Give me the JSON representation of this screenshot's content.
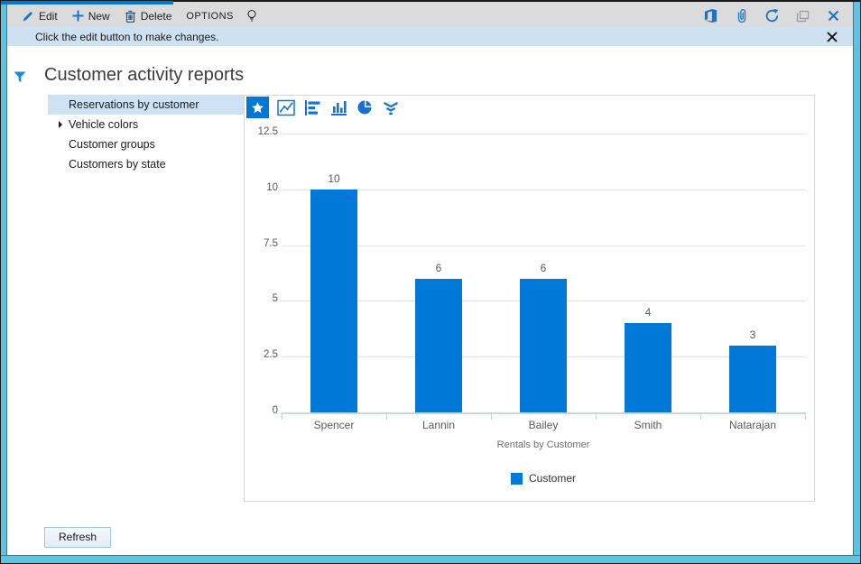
{
  "toolbar": {
    "edit_label": "Edit",
    "new_label": "New",
    "delete_label": "Delete",
    "options_label": "OPTIONS"
  },
  "notification": {
    "message": "Click the edit button to make changes."
  },
  "page": {
    "title": "Customer activity reports"
  },
  "report_list": {
    "items": [
      {
        "label": "Reservations by customer",
        "selected": true,
        "expandable": false
      },
      {
        "label": "Vehicle colors",
        "selected": false,
        "expandable": true
      },
      {
        "label": "Customer groups",
        "selected": false,
        "expandable": false
      },
      {
        "label": "Customers by state",
        "selected": false,
        "expandable": false
      }
    ]
  },
  "chart_toolbar": {
    "selected": "star",
    "icons": [
      "star",
      "line-chart",
      "bar-chart-horizontal",
      "column-chart",
      "donut-chart",
      "funnel-chart"
    ]
  },
  "chart_data": {
    "type": "bar",
    "title": "",
    "categories": [
      "Spencer",
      "Lannin",
      "Bailey",
      "Smith",
      "Natarajan"
    ],
    "values": [
      10,
      6,
      6,
      4,
      3
    ],
    "series_name": "Customer",
    "xlabel": "Rentals by Customer",
    "ylabel": "",
    "y_ticks": [
      0,
      2.5,
      5,
      7.5,
      10,
      12.5
    ],
    "ylim": [
      0,
      12.5
    ],
    "grid": true,
    "legend": [
      "Customer"
    ],
    "legend_position": "bottom",
    "bar_color": "#0078d7"
  },
  "footer": {
    "refresh_label": "Refresh"
  },
  "colors": {
    "accent_blue": "#0078d7",
    "icon_blue": "#1474d4",
    "frame_cyan": "#5fc3e0",
    "toolbar_gray": "#dbdbdb",
    "notification_blue": "#cde1f2",
    "selected_row": "#cfe2f4"
  }
}
